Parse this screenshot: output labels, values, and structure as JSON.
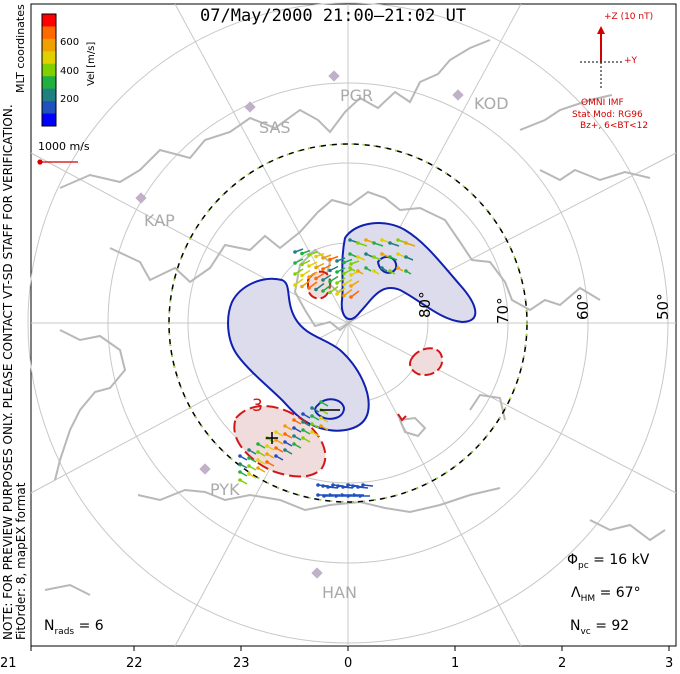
{
  "title": "07/May/2000 21:00–21:02 UT",
  "colorbar": {
    "label": "Vel [m/s]",
    "ticks": [
      "600",
      "400",
      "200"
    ],
    "colors": [
      "#ff0000",
      "#ff6a00",
      "#f0a000",
      "#e0d000",
      "#80d000",
      "#20b040",
      "#208080",
      "#2050c0",
      "#0000ff"
    ]
  },
  "mlt_coordinates": "MLT coordinates",
  "vector_scale": "1000 m/s",
  "imf": {
    "z_label": "+Z (10 nT)",
    "y_label": "+Y",
    "source": "OMNI IMF",
    "model": "Stat Mod: RG96",
    "condition": "Bz+, 6<BT<12"
  },
  "note": {
    "line1": "NOTE: FOR PREVIEW PURPOSES ONLY. PLEASE CONTACT VT-SD STAFF FOR VERIFICATION.",
    "line2": "FitOrder: 8, mapEX format"
  },
  "stations": [
    {
      "code": "PGR"
    },
    {
      "code": "SAS"
    },
    {
      "code": "KOD"
    },
    {
      "code": "KAP"
    },
    {
      "code": "PYK"
    },
    {
      "code": "HAN"
    }
  ],
  "latitudes": [
    "80°",
    "70°",
    "60°",
    "50°"
  ],
  "contour_labels": [
    "3",
    "−"
  ],
  "stats": {
    "phi_pc": {
      "symbol": "Φ",
      "sub": "pc",
      "value": "= 16 kV"
    },
    "lambda_hm": {
      "symbol": "Λ",
      "sub": "HM",
      "value": "= 67°"
    },
    "n_vc": {
      "symbol": "N",
      "sub": "vc",
      "value": "= 92"
    },
    "n_rads": {
      "symbol": "N",
      "sub": "rads",
      "value": "= 6"
    }
  },
  "mlt_ticks": [
    "21",
    "22",
    "23",
    "0",
    "1",
    "2",
    "3"
  ],
  "colors": {
    "neg_contour": "#1020b0",
    "neg_fill": "#dcdcec",
    "pos_contour": "#d01818",
    "pos_fill": "#f0dcdc",
    "coast": "#b8b8b8",
    "grid": "#c8c8c8",
    "imf": "#d40000"
  }
}
